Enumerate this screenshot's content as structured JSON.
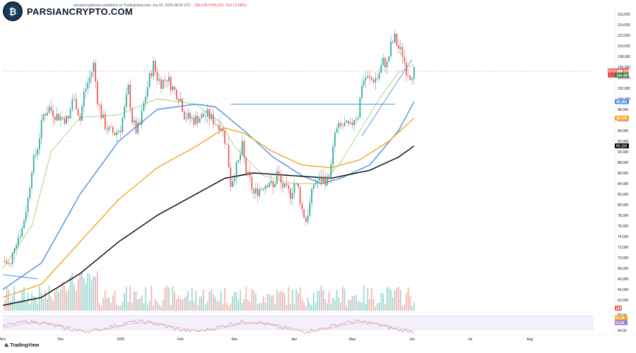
{
  "header": {
    "publisher": "parsiancryptoman published on TradingView.com, Jun 03, 2025 08:03 UTC",
    "ohlc": "105,199  H105,291  -614 (-0.58%)"
  },
  "logo": {
    "brand": "PARSIANCRYPTO.COM"
  },
  "footer": {
    "tradingview": "TradingView"
  },
  "colors": {
    "up": "#26a69a",
    "down": "#ef5350",
    "sma20": "#8bc34a",
    "sma50": "#4a90e2",
    "sma100": "#f5a623",
    "sma200": "#000000",
    "resistance": "#4a90e2",
    "rsi": "#9c7bd6"
  },
  "chart_data": {
    "type": "candlestick",
    "symbol": "BTCUSD",
    "interval": "1D",
    "ylim": [
      60000,
      116000
    ],
    "price_ticks": [
      62000,
      64000,
      66000,
      68000,
      70000,
      72000,
      74000,
      76000,
      78000,
      80000,
      82000,
      84000,
      86000,
      88000,
      90000,
      92000,
      94000,
      96000,
      98000,
      100000,
      102000,
      104000,
      106000,
      108000,
      110000,
      112000,
      114000,
      116000
    ],
    "price_tick_labels": [
      "62,000",
      "64,000",
      "66,000",
      "68,000",
      "70,000",
      "72,000",
      "74,000",
      "76,000",
      "78,000",
      "80,000",
      "82,000",
      "84,000",
      "86,000",
      "88,000",
      "90,000",
      "92,000",
      "94,000",
      "96,000",
      "98,000",
      "100,000",
      "102,000",
      "104,000",
      "106,000",
      "108,000",
      "110,000",
      "112,000",
      "114,000",
      "116,000"
    ],
    "months": [
      {
        "label": "Nov",
        "day": 0
      },
      {
        "label": "Dec",
        "day": 30
      },
      {
        "label": "2025",
        "day": 61
      },
      {
        "label": "Feb",
        "day": 92
      },
      {
        "label": "Mar",
        "day": 120
      },
      {
        "label": "Apr",
        "day": 151
      },
      {
        "label": "May",
        "day": 181
      },
      {
        "label": "Jun",
        "day": 212
      },
      {
        "label": "Jul",
        "day": 242
      },
      {
        "label": "Aug",
        "day": 273
      }
    ],
    "xlim_days": [
      0,
      306
    ],
    "close_anchors": [
      [
        0,
        69500
      ],
      [
        4,
        68500
      ],
      [
        6,
        72500
      ],
      [
        10,
        75500
      ],
      [
        13,
        81000
      ],
      [
        15,
        87000
      ],
      [
        18,
        91000
      ],
      [
        21,
        97000
      ],
      [
        24,
        98300
      ],
      [
        27,
        97000
      ],
      [
        30,
        96500
      ],
      [
        34,
        96000
      ],
      [
        36,
        100000
      ],
      [
        38,
        99000
      ],
      [
        40,
        96000
      ],
      [
        42,
        101000
      ],
      [
        45,
        104000
      ],
      [
        47,
        106500
      ],
      [
        49,
        100000
      ],
      [
        51,
        97000
      ],
      [
        53,
        95000
      ],
      [
        55,
        94000
      ],
      [
        58,
        93500
      ],
      [
        61,
        94500
      ],
      [
        63,
        98000
      ],
      [
        65,
        102000
      ],
      [
        67,
        96000
      ],
      [
        69,
        94000
      ],
      [
        71,
        95000
      ],
      [
        73,
        99000
      ],
      [
        76,
        104000
      ],
      [
        78,
        106500
      ],
      [
        80,
        104000
      ],
      [
        82,
        103000
      ],
      [
        85,
        104000
      ],
      [
        88,
        102000
      ],
      [
        92,
        100000
      ],
      [
        94,
        97000
      ],
      [
        96,
        96500
      ],
      [
        99,
        96000
      ],
      [
        102,
        96500
      ],
      [
        106,
        97000
      ],
      [
        110,
        95500
      ],
      [
        113,
        95000
      ],
      [
        116,
        91000
      ],
      [
        118,
        84000
      ],
      [
        120,
        86000
      ],
      [
        122,
        88000
      ],
      [
        124,
        91000
      ],
      [
        126,
        86000
      ],
      [
        128,
        84500
      ],
      [
        130,
        82000
      ],
      [
        133,
        83000
      ],
      [
        136,
        84000
      ],
      [
        138,
        84500
      ],
      [
        140,
        83000
      ],
      [
        142,
        86000
      ],
      [
        144,
        84000
      ],
      [
        146,
        83000
      ],
      [
        149,
        82000
      ],
      [
        151,
        84000
      ],
      [
        153,
        83000
      ],
      [
        155,
        79000
      ],
      [
        157,
        77000
      ],
      [
        159,
        80000
      ],
      [
        161,
        84000
      ],
      [
        163,
        84500
      ],
      [
        166,
        85000
      ],
      [
        168,
        84500
      ],
      [
        170,
        87000
      ],
      [
        172,
        93500
      ],
      [
        174,
        94500
      ],
      [
        177,
        95000
      ],
      [
        180,
        94500
      ],
      [
        182,
        96500
      ],
      [
        184,
        97000
      ],
      [
        186,
        103000
      ],
      [
        188,
        104000
      ],
      [
        191,
        103500
      ],
      [
        194,
        104000
      ],
      [
        197,
        107000
      ],
      [
        199,
        106500
      ],
      [
        201,
        110000
      ],
      [
        203,
        111500
      ],
      [
        205,
        109500
      ],
      [
        207,
        108500
      ],
      [
        209,
        105500
      ],
      [
        211,
        104500
      ],
      [
        213,
        105200
      ]
    ],
    "moving_averages": [
      {
        "name": "sma20",
        "anchors": [
          [
            0,
            68000
          ],
          [
            15,
            76000
          ],
          [
            25,
            90000
          ],
          [
            40,
            96500
          ],
          [
            60,
            97000
          ],
          [
            80,
            100000
          ],
          [
            100,
            99000
          ],
          [
            113,
            95500
          ],
          [
            120,
            91000
          ],
          [
            135,
            85500
          ],
          [
            150,
            84000
          ],
          [
            165,
            84000
          ],
          [
            175,
            88000
          ],
          [
            185,
            94000
          ],
          [
            195,
            100000
          ],
          [
            205,
            105000
          ],
          [
            213,
            106500
          ]
        ]
      },
      {
        "name": "sma50",
        "anchors": [
          [
            0,
            64000
          ],
          [
            20,
            69000
          ],
          [
            40,
            82000
          ],
          [
            60,
            92000
          ],
          [
            80,
            98000
          ],
          [
            100,
            99000
          ],
          [
            110,
            98500
          ],
          [
            125,
            94000
          ],
          [
            140,
            89000
          ],
          [
            155,
            85500
          ],
          [
            165,
            84000
          ],
          [
            175,
            85000
          ],
          [
            190,
            87500
          ],
          [
            205,
            94000
          ],
          [
            213,
            99500
          ]
        ]
      },
      {
        "name": "sma100",
        "anchors": [
          [
            0,
            62500
          ],
          [
            20,
            65000
          ],
          [
            40,
            73000
          ],
          [
            60,
            81000
          ],
          [
            80,
            87000
          ],
          [
            100,
            91000
          ],
          [
            115,
            94500
          ],
          [
            125,
            93500
          ],
          [
            140,
            90000
          ],
          [
            155,
            87500
          ],
          [
            170,
            87000
          ],
          [
            185,
            88500
          ],
          [
            200,
            92000
          ],
          [
            213,
            96400
          ]
        ]
      },
      {
        "name": "sma200",
        "anchors": [
          [
            0,
            61000
          ],
          [
            20,
            62500
          ],
          [
            40,
            67000
          ],
          [
            60,
            73000
          ],
          [
            80,
            78000
          ],
          [
            100,
            82000
          ],
          [
            115,
            85000
          ],
          [
            130,
            86000
          ],
          [
            150,
            85500
          ],
          [
            170,
            85000
          ],
          [
            190,
            86500
          ],
          [
            205,
            89000
          ],
          [
            213,
            91100
          ]
        ]
      }
    ],
    "resistance_line": {
      "from_day": 118,
      "to_day": 203,
      "price": 99000
    },
    "trend_lines": [
      {
        "from": [
          186,
          93000
        ],
        "to": [
          212,
          107500
        ]
      },
      {
        "from": [
          0,
          66800
        ],
        "to": [
          18,
          66000
        ]
      }
    ],
    "price_badges": [
      {
        "label": "BTCUSD",
        "value": "105,291",
        "sub": "15:56:05",
        "price": 105291,
        "color": "#ef5350"
      },
      {
        "label": "",
        "value": "104,487",
        "price": 104487,
        "color": "#2e7d32"
      },
      {
        "label": "",
        "value": "99,465",
        "price": 99465,
        "color": "#4a90e2"
      },
      {
        "label": "",
        "value": "96,370",
        "price": 96370,
        "color": "#f5a623"
      },
      {
        "label": "",
        "value": "91,110",
        "price": 91110,
        "color": "#000000"
      }
    ],
    "volume_badge": "180",
    "rsi": {
      "ylim": [
        40,
        80
      ],
      "ticks": [
        "80.00",
        "40.00"
      ],
      "badges": [
        {
          "value": "61.25",
          "color": "#f5a623"
        },
        {
          "value": "53.84",
          "color": "#9c7bd6"
        }
      ]
    }
  }
}
